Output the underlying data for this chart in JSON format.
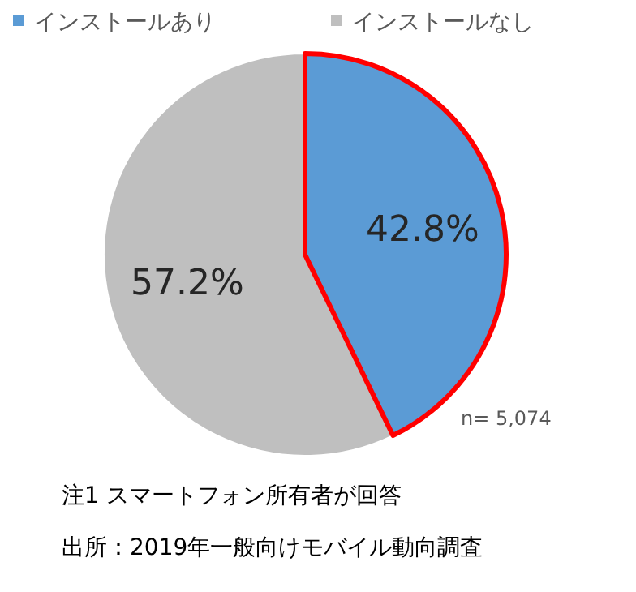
{
  "chart_data": {
    "type": "pie",
    "categories": [
      "インストールあり",
      "インストールなし"
    ],
    "values": [
      42.8,
      57.2
    ],
    "value_labels": [
      "42.8%",
      "57.2%"
    ],
    "colors": [
      "#5b9bd5",
      "#bfbfbf"
    ],
    "legend": "top",
    "annotations": [
      "n= 5,074",
      "注1 スマートフォン所有者が回答",
      "出所：2019年一般向けモバイル動向調査"
    ]
  }
}
